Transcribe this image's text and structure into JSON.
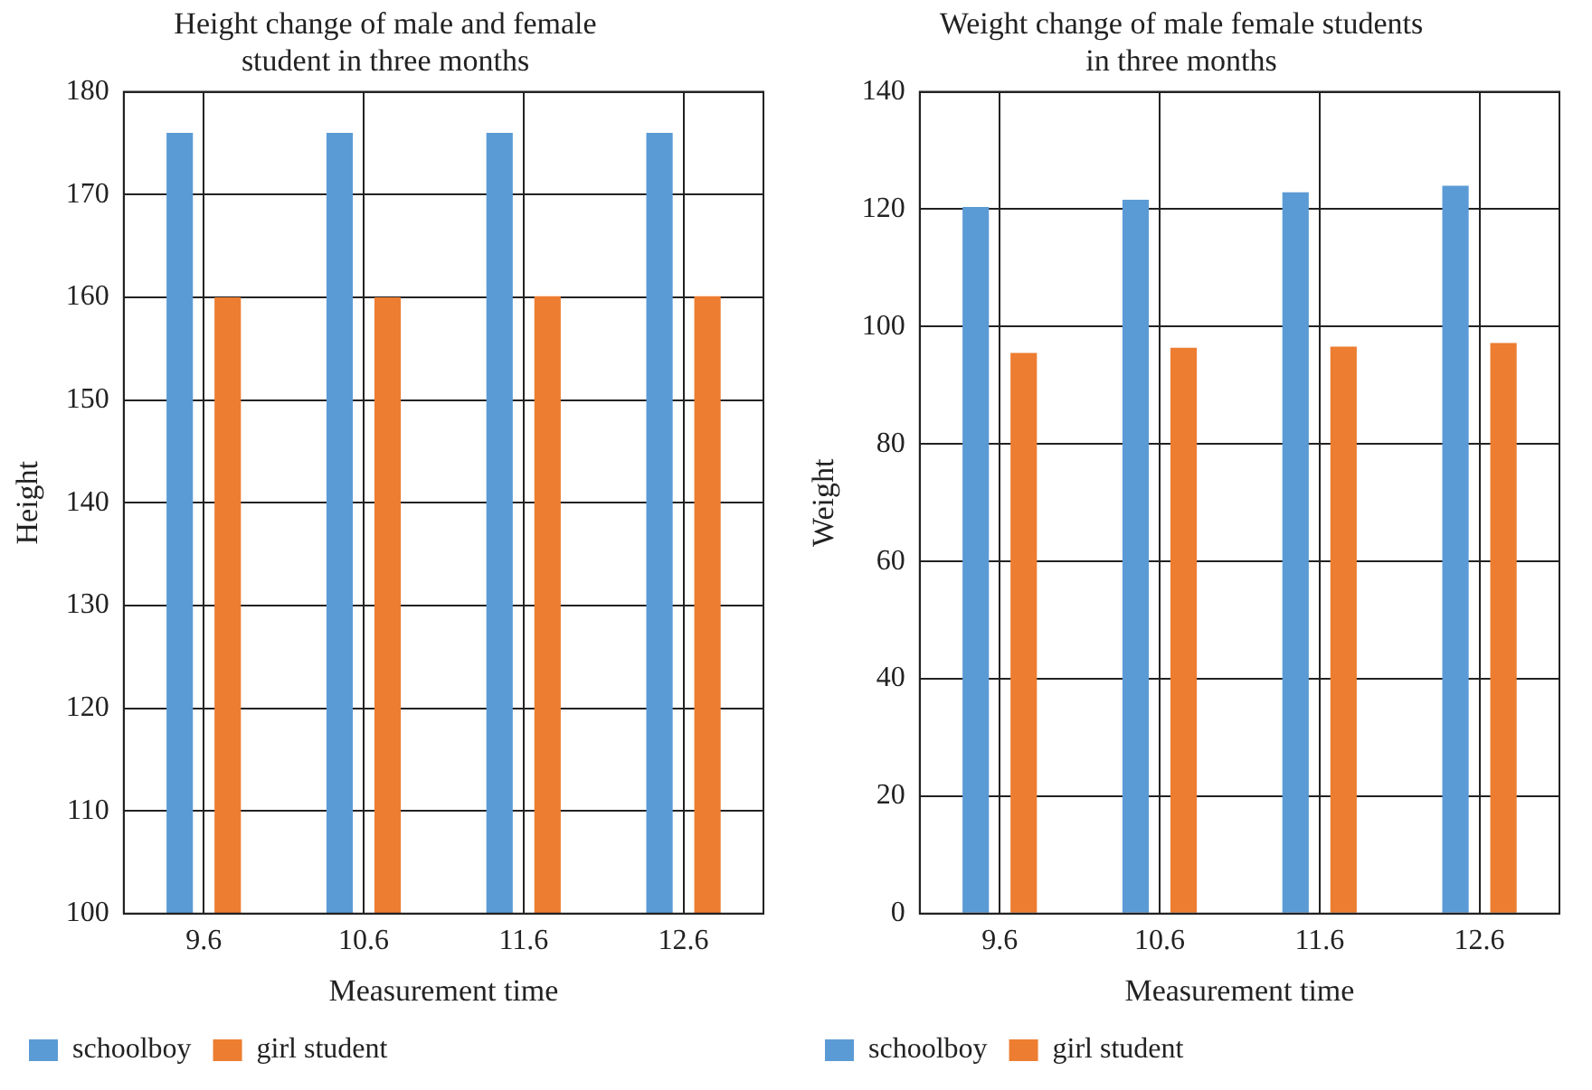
{
  "chart_data": [
    {
      "type": "bar",
      "title": "Height change of male and female student in three months",
      "xlabel": "Measurement time",
      "ylabel": "Height",
      "categories": [
        "9.6",
        "10.6",
        "11.6",
        "12.6"
      ],
      "series": [
        {
          "name": "schoolboy",
          "color": "#5b9bd5",
          "values": [
            176,
            176,
            176,
            176
          ]
        },
        {
          "name": "girl student",
          "color": "#ed7d31",
          "values": [
            160,
            160,
            160.1,
            160.1
          ]
        }
      ],
      "ylim": [
        100,
        180
      ],
      "yticks": [
        100,
        110,
        120,
        130,
        140,
        150,
        160,
        170,
        180
      ],
      "grid": true,
      "legend": "bottom left"
    },
    {
      "type": "bar",
      "title": "Weight change of male female students in three months",
      "xlabel": "Measurement time",
      "ylabel": "Weight",
      "categories": [
        "9.6",
        "10.6",
        "11.6",
        "12.6"
      ],
      "series": [
        {
          "name": "schoolboy",
          "color": "#5b9bd5",
          "values": [
            120.4,
            121.6,
            122.9,
            124
          ]
        },
        {
          "name": "girl student",
          "color": "#ed7d31",
          "values": [
            95.5,
            96.4,
            96.6,
            97.2
          ]
        }
      ],
      "ylim": [
        0,
        140
      ],
      "yticks": [
        0,
        20,
        40,
        60,
        80,
        100,
        120,
        140
      ],
      "grid": true,
      "legend": "bottom left"
    }
  ]
}
